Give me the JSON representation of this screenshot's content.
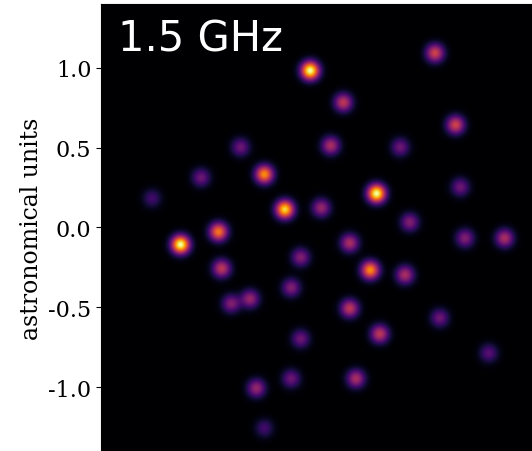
{
  "chart_data": {
    "type": "heatmap",
    "annotation": "1.5 GHz",
    "ylabel": "astronomical units",
    "xlim": [
      -1.36,
      1.36
    ],
    "ylim": [
      -1.4,
      1.4
    ],
    "yticks": [
      -1.0,
      -0.5,
      0.0,
      0.5,
      1.0
    ],
    "tick_labels": "y",
    "x": [
      -0.04,
      0.38,
      -0.86,
      -0.2,
      -0.33,
      -0.62,
      0.34,
      0.75,
      0.88,
      0.17,
      0.09,
      1.19,
      -0.6,
      0.56,
      0.94,
      0.21,
      0.4,
      0.25,
      -0.38,
      -0.42,
      -0.1,
      0.21,
      0.59,
      -0.16,
      -0.73,
      -0.54,
      -0.1,
      0.78,
      -0.48,
      0.03,
      0.91,
      1.09,
      -0.33,
      -1.04,
      0.53,
      -0.16
    ],
    "y": [
      0.98,
      0.21,
      -0.11,
      0.11,
      0.33,
      -0.03,
      -0.27,
      1.09,
      0.64,
      0.78,
      0.51,
      -0.07,
      -0.26,
      -0.3,
      -0.07,
      -0.51,
      -0.67,
      -0.95,
      -1.01,
      -0.45,
      -0.19,
      -0.1,
      0.03,
      -0.38,
      0.31,
      -0.48,
      -0.7,
      -0.57,
      0.5,
      0.12,
      0.25,
      -0.79,
      -1.26,
      0.18,
      0.5,
      -0.95
    ],
    "values": [
      1.0,
      1.0,
      1.0,
      0.9,
      0.75,
      0.7,
      0.75,
      0.55,
      0.55,
      0.5,
      0.45,
      0.45,
      0.5,
      0.45,
      0.35,
      0.5,
      0.5,
      0.45,
      0.4,
      0.4,
      0.35,
      0.45,
      0.35,
      0.35,
      0.3,
      0.35,
      0.3,
      0.3,
      0.3,
      0.4,
      0.3,
      0.25,
      0.2,
      0.2,
      0.3,
      0.3
    ]
  }
}
